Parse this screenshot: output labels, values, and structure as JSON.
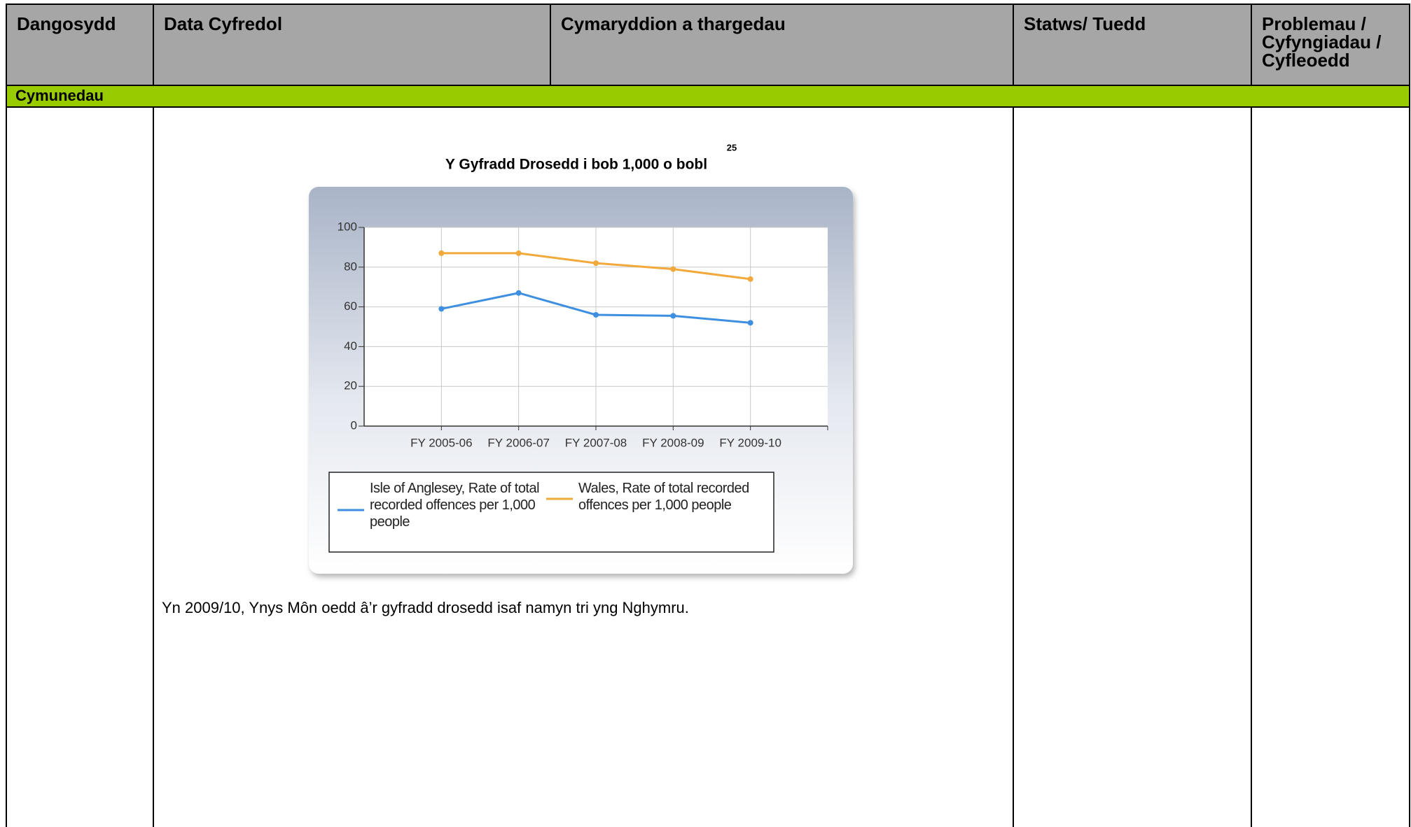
{
  "table": {
    "headers": [
      "Dangosydd",
      "Data Cyfredol",
      "Cymaryddion a thargedau",
      "Statws/ Tuedd",
      "Problemau / Cyfyngiadau / Cyfleoedd"
    ],
    "section": "Cymunedau"
  },
  "chart_data": {
    "type": "line",
    "title": "Y Gyfradd Drosedd i bob 1,000 o bobl",
    "footnote": "25",
    "categories": [
      "FY 2005-06",
      "FY 2006-07",
      "FY 2007-08",
      "FY 2008-09",
      "FY 2009-10"
    ],
    "series": [
      {
        "name": "Isle of Anglesey, Rate of total recorded offences per 1,000 people",
        "color": "#3f8fe0",
        "values": [
          59,
          67,
          56,
          55.5,
          52
        ]
      },
      {
        "name": "Wales, Rate of total recorded offences per 1,000 people",
        "color": "#f2a93b",
        "values": [
          87,
          87,
          82,
          79,
          74
        ]
      }
    ],
    "ylim": [
      0,
      100
    ],
    "yticks": [
      0,
      20,
      40,
      60,
      80,
      100
    ],
    "grid": true,
    "legend": "bottom"
  },
  "paragraph": "Yn 2009/10, Ynys Môn oedd â’r gyfradd drosedd isaf namyn tri yng Nghymru."
}
